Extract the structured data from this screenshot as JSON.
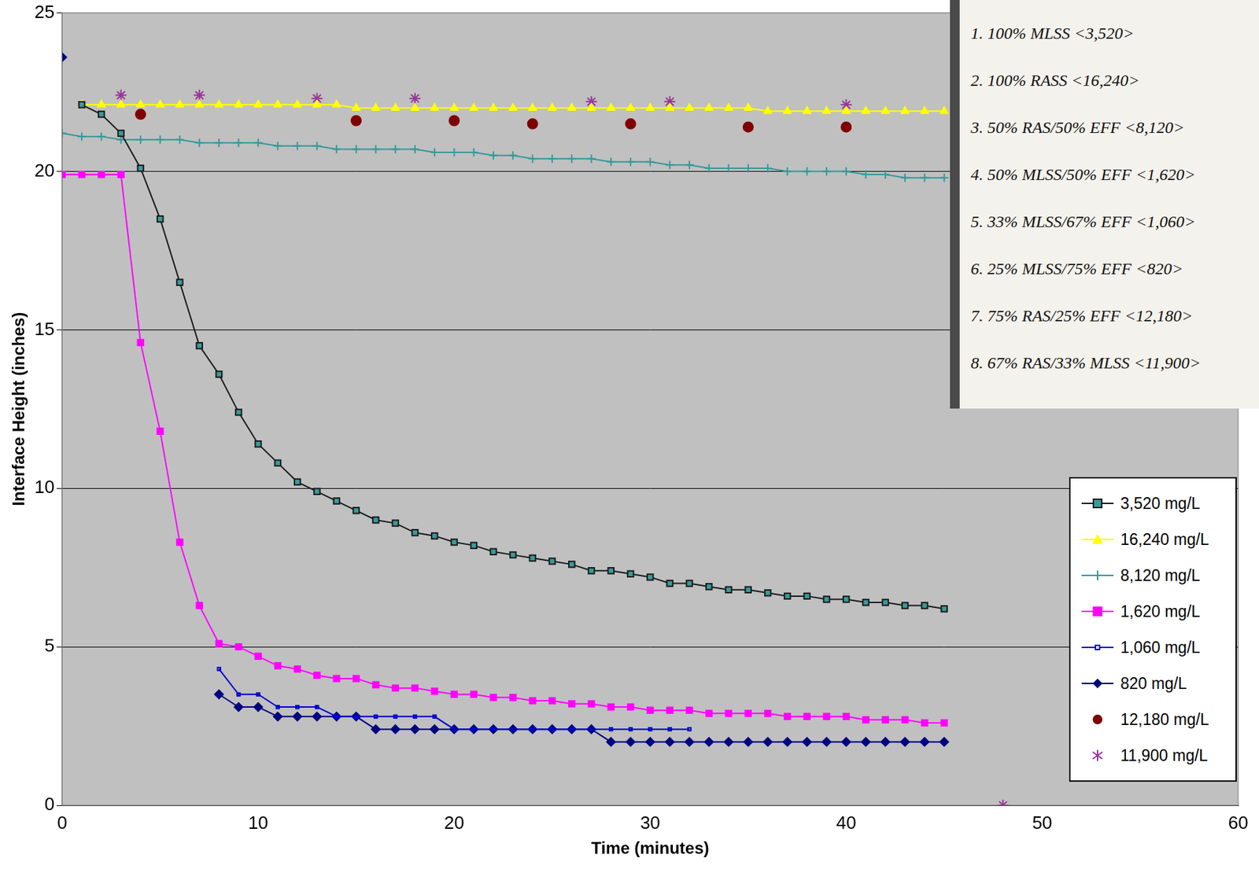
{
  "chart_data": {
    "type": "line",
    "x_label": "Time (minutes)",
    "y_label": "Interface Height (inches)",
    "xlim": [
      0,
      60
    ],
    "xticks": [
      0,
      10,
      20,
      30,
      40,
      50,
      60
    ],
    "ylim": [
      0,
      25
    ],
    "yticks": [
      0,
      5,
      10,
      15,
      20,
      25
    ],
    "grid": "y",
    "legend": "lower right",
    "annotations": [
      "1. 100% MLSS <3,520>",
      "2. 100% RASS <16,240>",
      "3. 50% RAS/50% EFF <8,120>",
      "4. 50% MLSS/50% EFF <1,620>",
      "5. 33% MLSS/67% EFF <1,060>",
      "6. 25% MLSS/75% EFF <820>",
      "7. 75% RAS/25% EFF <12,180>",
      "8. 67% RAS/33% MLSS <11,900>"
    ],
    "series": [
      {
        "name": "3,520 mg/L",
        "color": "#1a1a1a",
        "marker": "square",
        "line_style": "solid",
        "x": [
          1,
          2,
          3,
          4,
          5,
          6,
          7,
          8,
          9,
          10,
          11,
          12,
          13,
          14,
          15,
          16,
          17,
          18,
          19,
          20,
          21,
          22,
          23,
          24,
          25,
          26,
          27,
          28,
          29,
          30,
          31,
          32,
          33,
          34,
          35,
          36,
          37,
          38,
          39,
          40,
          41,
          42,
          43,
          44,
          45
        ],
        "values": [
          22.1,
          21.8,
          21.2,
          20.1,
          18.5,
          16.5,
          14.5,
          13.6,
          12.4,
          11.4,
          10.8,
          10.2,
          9.9,
          9.6,
          9.3,
          9.0,
          8.9,
          8.6,
          8.5,
          8.3,
          8.2,
          8.0,
          7.9,
          7.8,
          7.7,
          7.6,
          7.4,
          7.4,
          7.3,
          7.2,
          7.0,
          7.0,
          6.9,
          6.8,
          6.8,
          6.7,
          6.6,
          6.6,
          6.5,
          6.5,
          6.4,
          6.4,
          6.3,
          6.3,
          6.2
        ]
      },
      {
        "name": "16,240 mg/L",
        "color": "#ffff00",
        "marker": "triangle",
        "line_style": "solid",
        "x": [
          1,
          2,
          3,
          4,
          5,
          6,
          7,
          8,
          9,
          10,
          11,
          12,
          13,
          14,
          15,
          16,
          17,
          18,
          19,
          20,
          21,
          22,
          23,
          24,
          25,
          26,
          27,
          28,
          29,
          30,
          31,
          32,
          33,
          34,
          35,
          36,
          37,
          38,
          39,
          40,
          41,
          42,
          43,
          44,
          45
        ],
        "values": [
          22.1,
          22.1,
          22.1,
          22.1,
          22.1,
          22.1,
          22.1,
          22.1,
          22.1,
          22.1,
          22.1,
          22.1,
          22.1,
          22.1,
          22.0,
          22.0,
          22.0,
          22.0,
          22.0,
          22.0,
          22.0,
          22.0,
          22.0,
          22.0,
          22.0,
          22.0,
          22.0,
          22.0,
          22.0,
          22.0,
          22.0,
          22.0,
          22.0,
          22.0,
          22.0,
          21.9,
          21.9,
          21.9,
          21.9,
          21.9,
          21.9,
          21.9,
          21.9,
          21.9,
          21.9
        ]
      },
      {
        "name": "8,120 mg/L",
        "color": "#339999",
        "marker": "plus",
        "line_style": "solid",
        "x": [
          0,
          1,
          2,
          3,
          4,
          5,
          6,
          7,
          8,
          9,
          10,
          11,
          12,
          13,
          14,
          15,
          16,
          17,
          18,
          19,
          20,
          21,
          22,
          23,
          24,
          25,
          26,
          27,
          28,
          29,
          30,
          31,
          32,
          33,
          34,
          35,
          36,
          37,
          38,
          39,
          40,
          41,
          42,
          43,
          44,
          45
        ],
        "values": [
          21.2,
          21.1,
          21.1,
          21.0,
          21.0,
          21.0,
          21.0,
          20.9,
          20.9,
          20.9,
          20.9,
          20.8,
          20.8,
          20.8,
          20.7,
          20.7,
          20.7,
          20.7,
          20.7,
          20.6,
          20.6,
          20.6,
          20.5,
          20.5,
          20.4,
          20.4,
          20.4,
          20.4,
          20.3,
          20.3,
          20.3,
          20.2,
          20.2,
          20.1,
          20.1,
          20.1,
          20.1,
          20.0,
          20.0,
          20.0,
          20.0,
          19.9,
          19.9,
          19.8,
          19.8,
          19.8
        ]
      },
      {
        "name": "1,620 mg/L",
        "color": "#ff00ff",
        "marker": "square",
        "line_style": "solid",
        "x": [
          0,
          1,
          2,
          3,
          4,
          5,
          6,
          7,
          8,
          9,
          10,
          11,
          12,
          13,
          14,
          15,
          16,
          17,
          18,
          19,
          20,
          21,
          22,
          23,
          24,
          25,
          26,
          27,
          28,
          29,
          30,
          31,
          32,
          33,
          34,
          35,
          36,
          37,
          38,
          39,
          40,
          41,
          42,
          43,
          44,
          45
        ],
        "values": [
          19.9,
          19.9,
          19.9,
          19.9,
          14.6,
          11.8,
          8.3,
          6.3,
          5.1,
          5.0,
          4.7,
          4.4,
          4.3,
          4.1,
          4.0,
          4.0,
          3.8,
          3.7,
          3.7,
          3.6,
          3.5,
          3.5,
          3.4,
          3.4,
          3.3,
          3.3,
          3.2,
          3.2,
          3.1,
          3.1,
          3.0,
          3.0,
          3.0,
          2.9,
          2.9,
          2.9,
          2.9,
          2.8,
          2.8,
          2.8,
          2.8,
          2.7,
          2.7,
          2.7,
          2.6,
          2.6
        ]
      },
      {
        "name": "1,060 mg/L",
        "color": "#0000cc",
        "marker": "small square",
        "line_style": "solid",
        "x": [
          8,
          9,
          10,
          11,
          12,
          13,
          14,
          15,
          16,
          17,
          18,
          19,
          20,
          21,
          22,
          23,
          24,
          25,
          26,
          27,
          28,
          29,
          30,
          31,
          32
        ],
        "values": [
          4.3,
          3.5,
          3.5,
          3.1,
          3.1,
          3.1,
          2.8,
          2.8,
          2.8,
          2.8,
          2.8,
          2.8,
          2.4,
          2.4,
          2.4,
          2.4,
          2.4,
          2.4,
          2.4,
          2.4,
          2.4,
          2.4,
          2.4,
          2.4,
          2.4
        ]
      },
      {
        "name": "820 mg/L",
        "color": "#000080",
        "marker": "diamond",
        "line_style": "solid",
        "x": [
          0,
          1,
          8,
          9,
          10,
          11,
          12,
          13,
          14,
          15,
          16,
          17,
          18,
          19,
          20,
          21,
          22,
          23,
          24,
          25,
          26,
          27,
          28,
          29,
          30,
          31,
          32,
          33,
          34,
          35,
          36,
          37,
          38,
          39,
          40,
          41,
          42,
          43,
          44,
          45
        ],
        "values": [
          23.6,
          null,
          3.5,
          3.1,
          3.1,
          2.8,
          2.8,
          2.8,
          2.8,
          2.8,
          2.4,
          2.4,
          2.4,
          2.4,
          2.4,
          2.4,
          2.4,
          2.4,
          2.4,
          2.4,
          2.4,
          2.4,
          2.0,
          2.0,
          2.0,
          2.0,
          2.0,
          2.0,
          2.0,
          2.0,
          2.0,
          2.0,
          2.0,
          2.0,
          2.0,
          2.0,
          2.0,
          2.0,
          2.0,
          2.0
        ]
      },
      {
        "name": "12,180 mg/L",
        "color": "#800000",
        "marker": "circle",
        "line_style": "none",
        "x": [
          4,
          15,
          20,
          24,
          29,
          35,
          40
        ],
        "values": [
          21.8,
          21.6,
          21.6,
          21.5,
          21.5,
          21.4,
          21.4
        ]
      },
      {
        "name": "11,900 mg/L",
        "color": "#993399",
        "marker": "star",
        "line_style": "none",
        "x": [
          3,
          7,
          13,
          18,
          27,
          31,
          40,
          48
        ],
        "values": [
          22.4,
          22.4,
          22.3,
          22.3,
          22.2,
          22.2,
          22.1,
          0
        ]
      }
    ]
  }
}
